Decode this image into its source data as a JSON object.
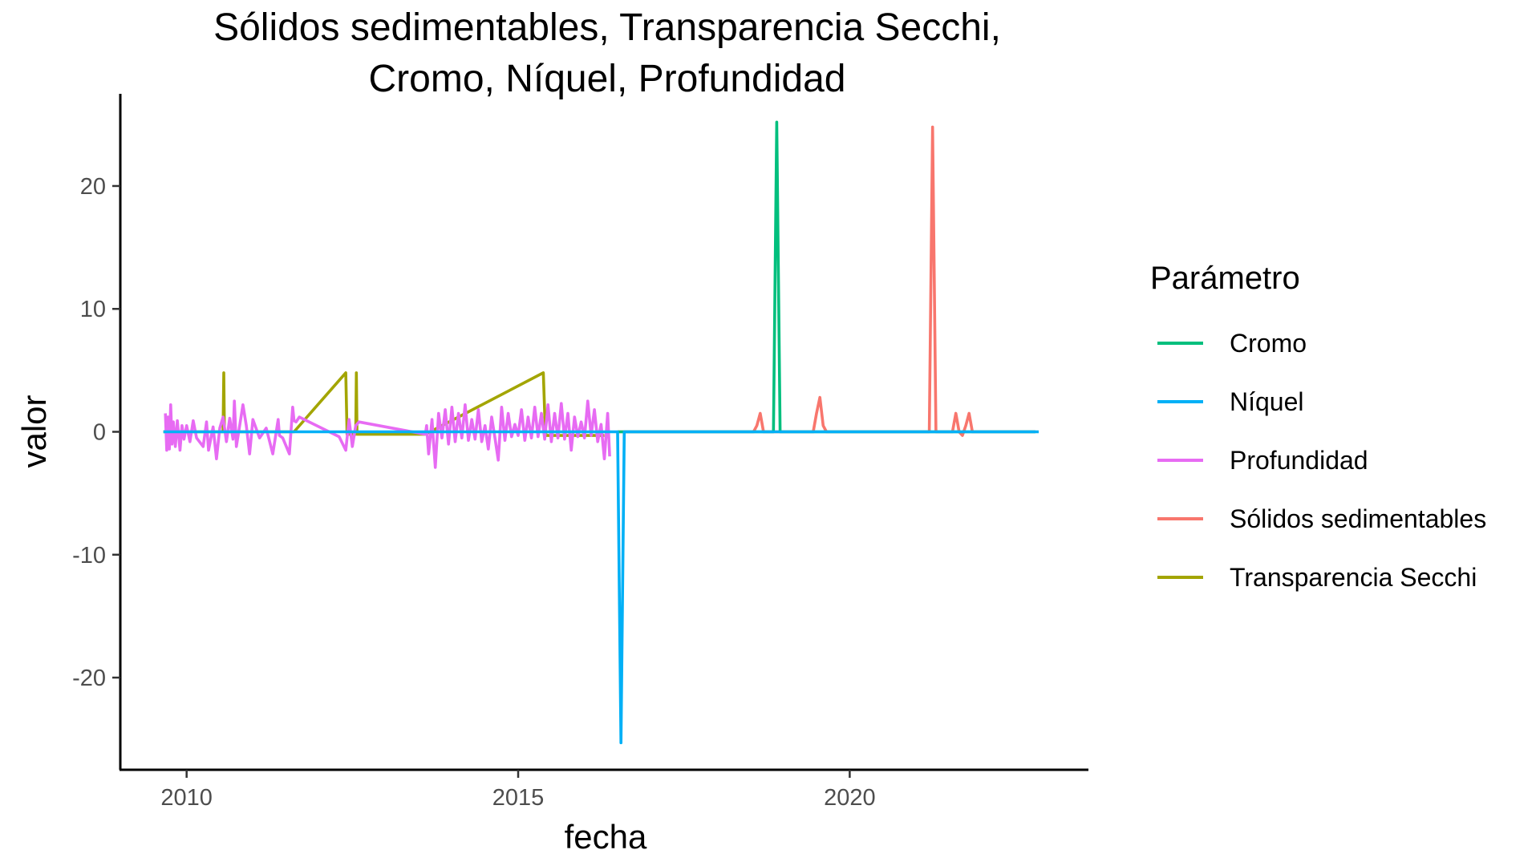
{
  "chart_data": {
    "type": "line",
    "title": "Sólidos sedimentables, Transparencia Secchi, Cromo, Níquel, Profundidad",
    "title_lines": [
      "Sólidos sedimentables, Transparencia Secchi,",
      "Cromo, Níquel, Profundidad"
    ],
    "xlabel": "fecha",
    "ylabel": "valor",
    "xlim": [
      2009.0,
      2023.6
    ],
    "ylim": [
      -27.5,
      27.5
    ],
    "x_ticks": [
      2010,
      2015,
      2020
    ],
    "x_tick_labels": [
      "2010",
      "2015",
      "2020"
    ],
    "y_ticks": [
      -20,
      -10,
      0,
      10,
      20
    ],
    "y_tick_labels": [
      "-20",
      "-10",
      "0",
      "10",
      "20"
    ],
    "grid": false,
    "legend": {
      "title": "Parámetro",
      "position": "right",
      "entries": [
        "Cromo",
        "Níquel",
        "Profundidad",
        "Sólidos sedimentables",
        "Transparencia Secchi"
      ]
    },
    "series": [
      {
        "name": "Transparencia Secchi",
        "color": "#A3A500",
        "x": [
          2009.65,
          2010.55,
          2010.56,
          2010.57,
          2011.6,
          2011.62,
          2012.4,
          2012.42,
          2012.55,
          2012.56,
          2012.57,
          2013.6,
          2015.38,
          2015.4,
          2015.42,
          2016.3
        ],
        "y": [
          0,
          0,
          4.8,
          0,
          0,
          0,
          4.8,
          -0.2,
          -0.2,
          4.8,
          -0.2,
          -0.2,
          4.8,
          1.5,
          -0.3,
          -0.3
        ]
      },
      {
        "name": "Profundidad",
        "color": "#E76BF3",
        "x": [
          2009.68,
          2009.7,
          2009.72,
          2009.74,
          2009.76,
          2009.78,
          2009.8,
          2009.83,
          2009.86,
          2009.9,
          2009.93,
          2009.96,
          2010.0,
          2010.05,
          2010.1,
          2010.15,
          2010.25,
          2010.3,
          2010.33,
          2010.4,
          2010.45,
          2010.5,
          2010.55,
          2010.6,
          2010.65,
          2010.7,
          2010.72,
          2010.75,
          2010.85,
          2010.9,
          2010.95,
          2011.0,
          2011.1,
          2011.2,
          2011.3,
          2011.38,
          2011.4,
          2011.45,
          2011.55,
          2011.6,
          2011.62,
          2011.65,
          2011.7,
          2012.3,
          2012.4,
          2012.45,
          2012.5,
          2012.55,
          2012.6,
          2013.6,
          2013.62,
          2013.65,
          2013.7,
          2013.72,
          2013.75,
          2013.8,
          2013.85,
          2013.9,
          2013.95,
          2014.0,
          2014.05,
          2014.1,
          2014.15,
          2014.2,
          2014.25,
          2014.3,
          2014.35,
          2014.4,
          2014.45,
          2014.5,
          2014.55,
          2014.6,
          2014.65,
          2014.7,
          2014.75,
          2014.8,
          2014.85,
          2014.9,
          2014.95,
          2015.0,
          2015.05,
          2015.1,
          2015.15,
          2015.2,
          2015.25,
          2015.3,
          2015.35,
          2015.4,
          2015.45,
          2015.5,
          2015.55,
          2015.6,
          2015.65,
          2015.7,
          2015.75,
          2015.8,
          2015.85,
          2015.9,
          2015.95,
          2016.0,
          2016.05,
          2016.1,
          2016.15,
          2016.2,
          2016.25,
          2016.3,
          2016.35,
          2016.38
        ],
        "y": [
          1.5,
          -1.5,
          1.2,
          -1.4,
          2.2,
          -1.0,
          0.8,
          -1.2,
          0.9,
          -1.5,
          0.5,
          -0.6,
          0.5,
          -0.8,
          0.9,
          -0.5,
          -1.2,
          0.8,
          -1.5,
          0.4,
          -2.2,
          0.3,
          1.2,
          -0.8,
          1.1,
          -0.6,
          2.5,
          -1.2,
          2.2,
          0.5,
          -1.8,
          1.0,
          -0.5,
          0.3,
          -1.8,
          1.0,
          -0.3,
          -0.5,
          -1.8,
          2.0,
          0.9,
          0.8,
          1.2,
          -0.4,
          -1.5,
          1.0,
          -1.2,
          0.5,
          0.8,
          -0.2,
          0.5,
          -1.8,
          1.0,
          -0.6,
          -2.9,
          1.5,
          -0.5,
          1.8,
          -1.0,
          2.0,
          -0.8,
          1.5,
          -0.5,
          2.2,
          -0.7,
          1.0,
          -0.6,
          1.8,
          -0.8,
          0.5,
          -1.4,
          1.2,
          -0.5,
          -2.3,
          2.0,
          -0.7,
          1.5,
          -0.4,
          0.6,
          -0.3,
          1.8,
          -0.7,
          1.2,
          -0.5,
          2.0,
          -0.4,
          1.5,
          -0.6,
          2.2,
          -0.8,
          1.5,
          -0.5,
          2.3,
          -0.6,
          1.5,
          -1.5,
          1.2,
          -0.4,
          0.8,
          -0.5,
          2.5,
          -0.3,
          1.8,
          -0.8,
          0.6,
          -2.2,
          1.5,
          -2.0
        ]
      },
      {
        "name": "Sólidos sedimentables",
        "color": "#F8766D",
        "x": [
          2016.5,
          2018.55,
          2018.6,
          2018.65,
          2018.7,
          2019.45,
          2019.5,
          2019.55,
          2019.6,
          2019.65,
          2021.2,
          2021.25,
          2021.3,
          2021.55,
          2021.6,
          2021.65,
          2021.7,
          2021.75,
          2021.8,
          2021.85,
          2022.8
        ],
        "y": [
          0,
          0,
          0.5,
          1.5,
          0,
          0,
          1.5,
          2.8,
          0.5,
          0,
          0,
          24.8,
          0,
          0,
          1.5,
          0,
          -0.3,
          0.5,
          1.5,
          0,
          0
        ]
      },
      {
        "name": "Cromo",
        "color": "#00BF7D",
        "x": [
          2016.5,
          2018.85,
          2018.9,
          2018.95,
          2019.0,
          2022.8
        ],
        "y": [
          0,
          0,
          25.2,
          0,
          0,
          0
        ]
      },
      {
        "name": "Níquel",
        "color": "#00B0F6",
        "x": [
          2009.65,
          2016.5,
          2016.55,
          2016.6,
          2022.85
        ],
        "y": [
          0,
          0,
          -25.3,
          0,
          0
        ]
      }
    ]
  }
}
